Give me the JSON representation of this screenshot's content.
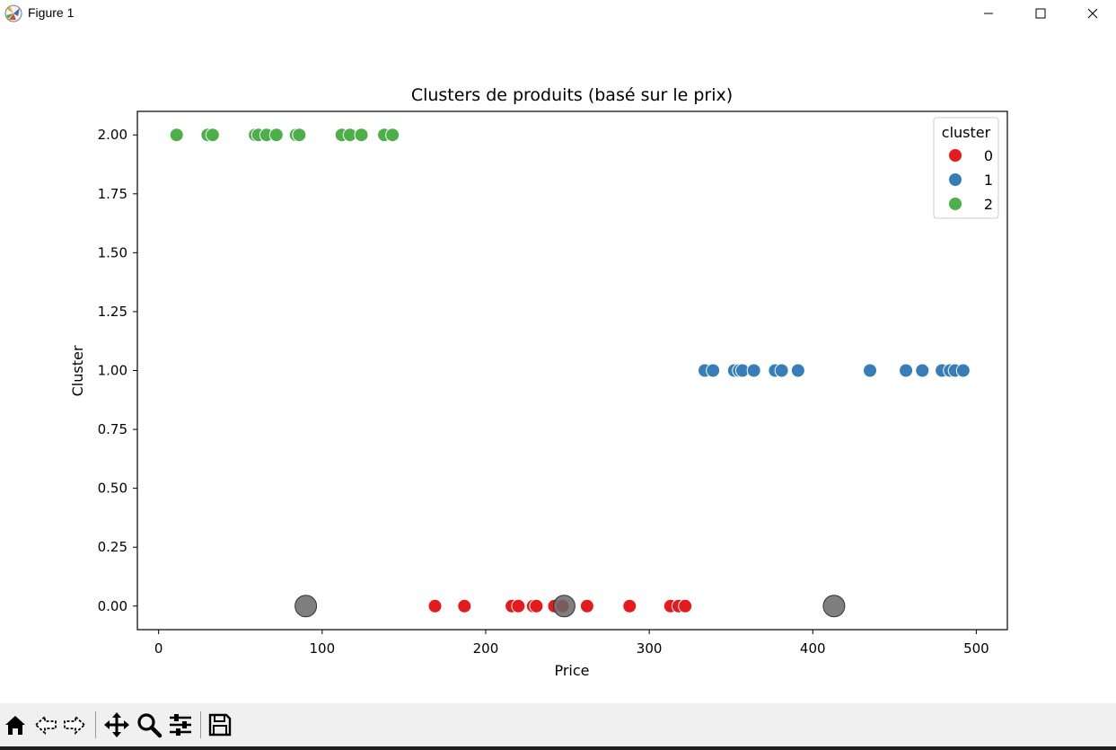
{
  "window": {
    "title": "Figure 1",
    "icons": {
      "app": "matplotlib-logo-icon",
      "minimize": "minimize-icon",
      "maximize": "maximize-icon",
      "close": "close-icon"
    }
  },
  "toolbar": {
    "buttons": [
      {
        "name": "home-icon",
        "tooltip": "Home"
      },
      {
        "name": "back-arrow-icon",
        "tooltip": "Back"
      },
      {
        "name": "forward-arrow-icon",
        "tooltip": "Forward"
      },
      {
        "name": "pan-move-icon",
        "tooltip": "Pan"
      },
      {
        "name": "zoom-magnifier-icon",
        "tooltip": "Zoom"
      },
      {
        "name": "configure-subplots-icon",
        "tooltip": "Subplots"
      },
      {
        "name": "save-floppy-icon",
        "tooltip": "Save"
      }
    ]
  },
  "chart_data": {
    "type": "scatter",
    "title": "Clusters de produits (basé sur le prix)",
    "xlabel": "Price",
    "ylabel": "Cluster",
    "xlim": [
      -13,
      519
    ],
    "ylim": [
      -0.1,
      2.1
    ],
    "xticks": [
      0,
      100,
      200,
      300,
      400,
      500
    ],
    "xtick_labels": [
      "0",
      "100",
      "200",
      "300",
      "400",
      "500"
    ],
    "yticks": [
      0,
      0.25,
      0.5,
      0.75,
      1,
      1.25,
      1.5,
      1.75,
      2
    ],
    "ytick_labels": [
      "0.00",
      "0.25",
      "0.50",
      "0.75",
      "1.00",
      "1.25",
      "1.50",
      "1.75",
      "2.00"
    ],
    "grid": false,
    "legend": {
      "title": "cluster",
      "placement": "top-right"
    },
    "series": [
      {
        "name": "0",
        "color": "#e41a1c",
        "y": 0,
        "x": [
          169,
          187,
          216,
          220,
          229,
          231,
          242,
          247,
          262,
          288,
          313,
          318,
          322
        ]
      },
      {
        "name": "1",
        "color": "#377eb8",
        "y": 1,
        "x": [
          334,
          339,
          352,
          355,
          357,
          364,
          377,
          381,
          391,
          435,
          457,
          467,
          479,
          484,
          487,
          492
        ]
      },
      {
        "name": "2",
        "color": "#4daf4a",
        "y": 2,
        "x": [
          11,
          30,
          33,
          59,
          61,
          66,
          72,
          84,
          86,
          112,
          117,
          124,
          138,
          143
        ]
      }
    ],
    "centroids": {
      "color": "#696969",
      "y": 0,
      "x": [
        90,
        248,
        413
      ]
    }
  }
}
